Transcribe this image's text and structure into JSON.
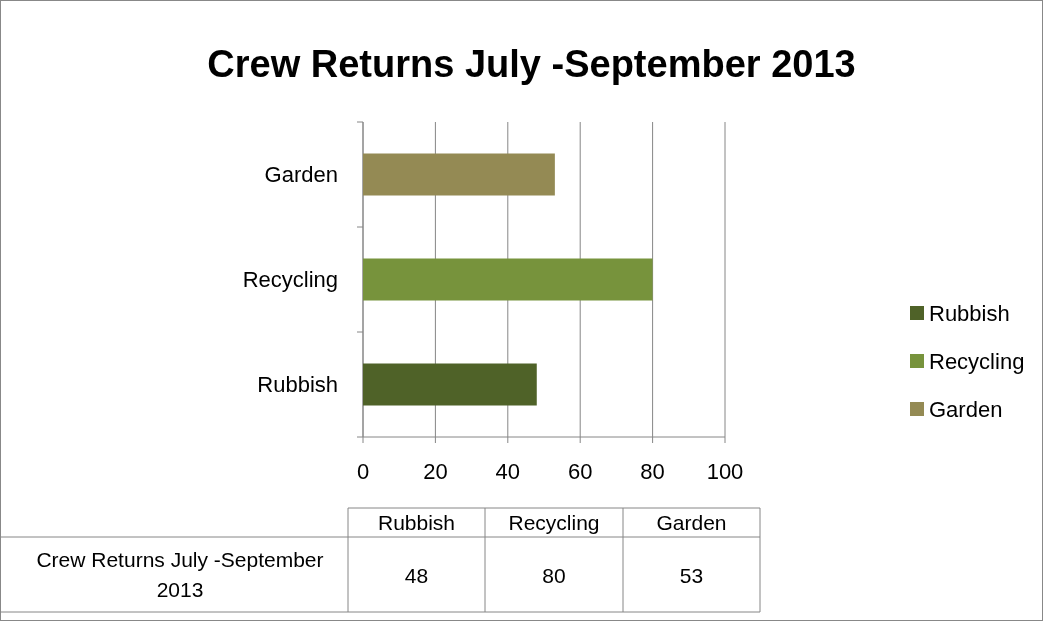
{
  "chart_data": [
    {
      "type": "bar",
      "title": "Crew Returns July -September 2013",
      "orientation": "horizontal",
      "categories": [
        "Garden",
        "Recycling",
        "Rubbish"
      ],
      "series": [
        {
          "name": "Rubbish",
          "color": "#4f6228",
          "values": [
            null,
            null,
            48
          ]
        },
        {
          "name": "Recycling",
          "color": "#77933c",
          "values": [
            null,
            80,
            null
          ]
        },
        {
          "name": "Garden",
          "color": "#948a54",
          "values": [
            53,
            null,
            null
          ]
        }
      ],
      "xlim": [
        0,
        100
      ],
      "xticks": [
        0,
        20,
        40,
        60,
        80,
        100
      ],
      "grid": "x",
      "legend": "right"
    },
    {
      "type": "other",
      "categories": [
        "Rubbish",
        "Recycling",
        "Garden"
      ],
      "values": [
        48,
        80,
        53
      ],
      "data_labels": true,
      "annotations": [
        "Crew Returns July -September 2013"
      ]
    }
  ]
}
